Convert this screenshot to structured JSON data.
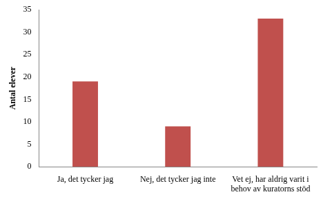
{
  "chart_data": {
    "type": "bar",
    "y_label": "Antal elever",
    "categories": [
      "Ja, det tycker jag",
      "Nej, det tycker jag inte",
      "Vet ej, har aldrig varit i behov av kuratorns stöd"
    ],
    "values": [
      19,
      9,
      33
    ],
    "color": "#c0504d",
    "ylim": [
      0,
      35
    ],
    "yticks": [
      0,
      5,
      10,
      15,
      20,
      25,
      30,
      35
    ],
    "grid": false
  }
}
